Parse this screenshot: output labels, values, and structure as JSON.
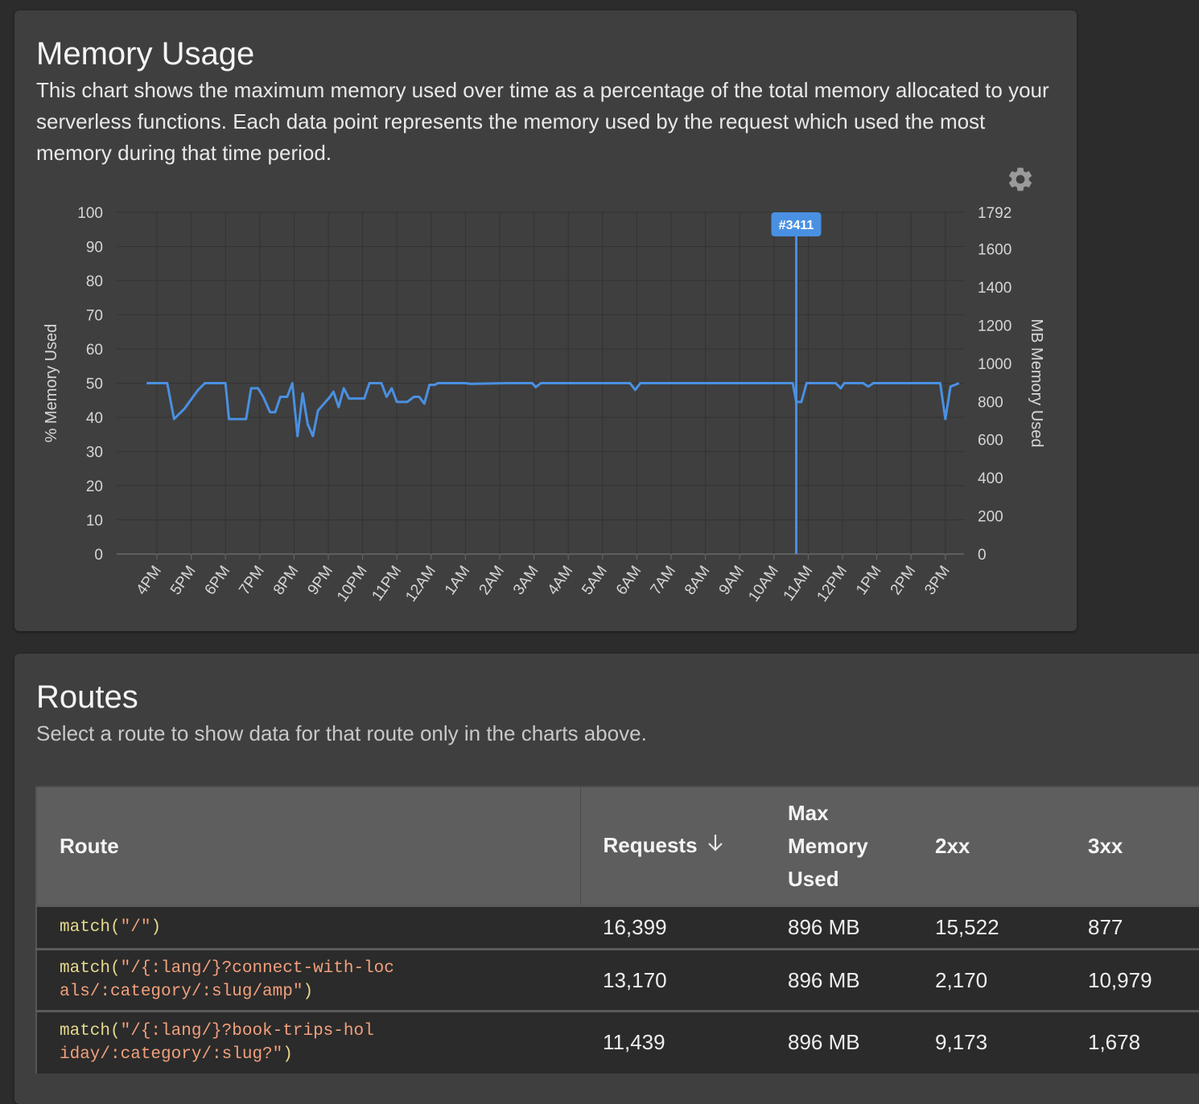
{
  "memory_card": {
    "title": "Memory Usage",
    "description": "This chart shows the maximum memory used over time as a percentage of the total memory allocated to your serverless functions. Each data point represents the memory used by the request which used the most memory during that time period.",
    "settings_icon": "gear-icon"
  },
  "chart_data": {
    "type": "line",
    "ylabel": "% Memory Used",
    "ylabel_right": "MB Memory Used",
    "ylim": [
      0,
      100
    ],
    "y_ticks": [
      "100",
      "90",
      "80",
      "70",
      "60",
      "50",
      "40",
      "30",
      "20",
      "10",
      "0"
    ],
    "y_right_ticks": [
      "1792",
      "1600",
      "1400",
      "1200",
      "1000",
      "800",
      "600",
      "400",
      "200",
      "0"
    ],
    "y_right_max": 1792,
    "x_ticks": [
      "4PM",
      "5PM",
      "6PM",
      "7PM",
      "8PM",
      "9PM",
      "10PM",
      "11PM",
      "12AM",
      "1AM",
      "2AM",
      "3AM",
      "4AM",
      "5AM",
      "6AM",
      "7AM",
      "8AM",
      "9AM",
      "10AM",
      "11AM",
      "12PM",
      "1PM",
      "2PM",
      "3PM"
    ],
    "grid": true,
    "line_color": "#4a90e2",
    "marker": {
      "label": "#3411",
      "x": 18.65
    },
    "series": [
      {
        "values": [
          [
            -0.3,
            50
          ],
          [
            0.3,
            50
          ],
          [
            0.5,
            39.5
          ],
          [
            0.8,
            42.5
          ],
          [
            1.2,
            48
          ],
          [
            1.4,
            50
          ],
          [
            2.0,
            50
          ],
          [
            2.1,
            39.5
          ],
          [
            2.6,
            39.5
          ],
          [
            2.75,
            48.5
          ],
          [
            2.95,
            48.5
          ],
          [
            3.1,
            46
          ],
          [
            3.3,
            41.5
          ],
          [
            3.45,
            41.5
          ],
          [
            3.6,
            46
          ],
          [
            3.8,
            46
          ],
          [
            3.95,
            50
          ],
          [
            4.1,
            34.5
          ],
          [
            4.25,
            47
          ],
          [
            4.4,
            38
          ],
          [
            4.55,
            34.5
          ],
          [
            4.7,
            42
          ],
          [
            5.05,
            46
          ],
          [
            5.15,
            47.5
          ],
          [
            5.3,
            43
          ],
          [
            5.45,
            48.5
          ],
          [
            5.6,
            45.5
          ],
          [
            5.9,
            45.5
          ],
          [
            6.05,
            45.5
          ],
          [
            6.2,
            50
          ],
          [
            6.55,
            50
          ],
          [
            6.7,
            46
          ],
          [
            6.85,
            48.5
          ],
          [
            7.0,
            44.5
          ],
          [
            7.3,
            44.5
          ],
          [
            7.5,
            46
          ],
          [
            7.65,
            46
          ],
          [
            7.8,
            44
          ],
          [
            7.95,
            49.5
          ],
          [
            8.1,
            49.5
          ],
          [
            8.2,
            50
          ],
          [
            9.0,
            50
          ],
          [
            9.15,
            49.8
          ],
          [
            10.2,
            50
          ],
          [
            10.95,
            50
          ],
          [
            11.05,
            48.8
          ],
          [
            11.2,
            50
          ],
          [
            13.8,
            50
          ],
          [
            13.95,
            48
          ],
          [
            14.1,
            50
          ],
          [
            18.55,
            50
          ],
          [
            18.65,
            44.5
          ],
          [
            18.8,
            44.5
          ],
          [
            18.95,
            50
          ],
          [
            19.8,
            50
          ],
          [
            19.95,
            48.5
          ],
          [
            20.05,
            50
          ],
          [
            20.6,
            50
          ],
          [
            20.75,
            49
          ],
          [
            20.9,
            50
          ],
          [
            22.85,
            50
          ],
          [
            23.0,
            39.5
          ],
          [
            23.15,
            49
          ],
          [
            23.4,
            50
          ]
        ]
      }
    ]
  },
  "routes_card": {
    "title": "Routes",
    "description": "Select a route to show data for that route only in the charts above.",
    "columns": {
      "route": "Route",
      "requests": "Requests",
      "max_memory": "Max Memory Used",
      "s2xx": "2xx",
      "s3xx": "3xx"
    },
    "sort_icon": "arrow-down-icon",
    "rows": [
      {
        "route_fn": "match(",
        "route_str": "\"/\"",
        "route_close": ")",
        "requests": "16,399",
        "max_memory": "896 MB",
        "s2xx": "15,522",
        "s3xx": "877"
      },
      {
        "route_fn": "match(",
        "route_str": "\"/{:lang/}?connect-with-locals/:category/:slug/amp\"",
        "route_close": ")",
        "requests": "13,170",
        "max_memory": "896 MB",
        "s2xx": "2,170",
        "s3xx": "10,979"
      },
      {
        "route_fn": "match(",
        "route_str": "\"/{:lang/}?book-trips-holiday/:category/:slug?\"",
        "route_close": ")",
        "requests": "11,439",
        "max_memory": "896 MB",
        "s2xx": "9,173",
        "s3xx": "1,678"
      }
    ]
  }
}
